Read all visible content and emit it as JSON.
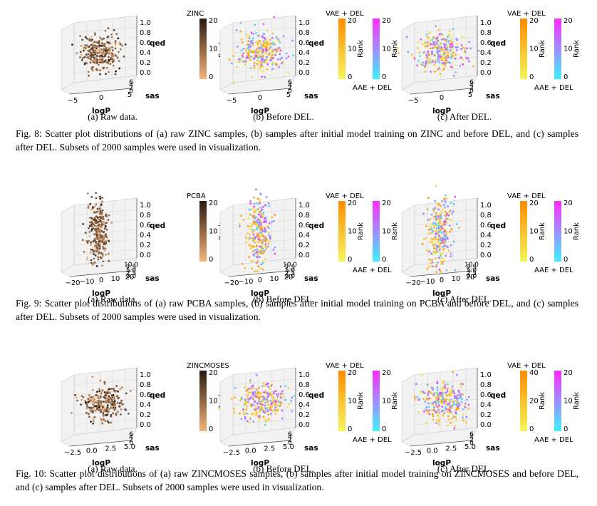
{
  "figures": [
    {
      "id": "fig8",
      "dataset": "ZINC",
      "caption": "Fig. 8: Scatter plot distributions of (a) raw ZINC samples, (b) samples after initial model training on ZINC and before DEL, and (c) samples after DEL. Subsets of 2000 samples were used in visualization.",
      "x_ticks": [
        "−5",
        "0",
        "5"
      ],
      "y_ticks": [
        "6",
        "4",
        "2",
        "0"
      ],
      "z_ticks": [
        "1.0",
        "0.8",
        "0.6",
        "0.4",
        "0.2",
        "0.0"
      ],
      "panels": [
        {
          "subcaption": "(a) Raw data.",
          "colorbars": [
            {
              "label": "ZINC",
              "ticks": [
                "20",
                "10",
                "0"
              ],
              "colormap": "copper"
            }
          ]
        },
        {
          "subcaption": "(b) Before DEL.",
          "colorbars": [
            {
              "label": "VAE + DEL",
              "ticks": [
                "20",
                "10",
                "0"
              ],
              "colormap": "wistia"
            },
            {
              "label": "AAE + DEL",
              "ticks": [
                "20",
                "10",
                "0"
              ],
              "colormap": "cool"
            }
          ]
        },
        {
          "subcaption": "(c) After DEL.",
          "colorbars": [
            {
              "label": "VAE + DEL",
              "ticks": [
                "20",
                "10",
                "0"
              ],
              "colormap": "wistia"
            },
            {
              "label": "AAE + DEL",
              "ticks": [
                "20",
                "10",
                "0"
              ],
              "colormap": "cool"
            }
          ]
        }
      ]
    },
    {
      "id": "fig9",
      "dataset": "PCBA",
      "caption": "Fig. 9: Scatter plot distributions of (a) raw PCBA samples, (b) samples after initial model training on PCBA and before DEL, and (c) samples after DEL. Subsets of 2000 samples were used in visualization.",
      "x_ticks": [
        "−20",
        "−10",
        "0",
        "10",
        "20"
      ],
      "y_ticks": [
        "10.0",
        "7.5",
        "5.0",
        "2.5",
        "0.0"
      ],
      "z_ticks": [
        "1.0",
        "0.8",
        "0.6",
        "0.4",
        "0.2",
        "0.0"
      ],
      "panels": [
        {
          "subcaption": "(a) Raw data.",
          "colorbars": [
            {
              "label": "PCBA",
              "ticks": [
                "20",
                "10",
                "0"
              ],
              "colormap": "copper"
            }
          ]
        },
        {
          "subcaption": "(b) Before DEL.",
          "colorbars": [
            {
              "label": "VAE + DEL",
              "ticks": [
                "20",
                "10",
                "0"
              ],
              "colormap": "wistia"
            },
            {
              "label": "AAE + DEL",
              "ticks": [
                "20",
                "10",
                "0"
              ],
              "colormap": "cool"
            }
          ]
        },
        {
          "subcaption": "(c) After DEL.",
          "colorbars": [
            {
              "label": "VAE + DEL",
              "ticks": [
                "20",
                "10",
                "0"
              ],
              "colormap": "wistia"
            },
            {
              "label": "AAE + DEL",
              "ticks": [
                "20",
                "10",
                "0"
              ],
              "colormap": "cool"
            }
          ]
        }
      ]
    },
    {
      "id": "fig10",
      "dataset": "ZINCMOSES",
      "caption": "Fig. 10: Scatter plot distributions of (a) raw ZINCMOSES samples, (b) samples after initial model training on ZINCMOSES and before DEL, and (c) samples after DEL. Subsets of 2000 samples were used in visualization.",
      "x_ticks": [
        "−2.5",
        "0.0",
        "2.5",
        "5.0"
      ],
      "y_ticks": [
        "6",
        "4",
        "2",
        "0"
      ],
      "z_ticks": [
        "1.0",
        "0.8",
        "0.6",
        "0.4",
        "0.2",
        "0.0"
      ],
      "panels": [
        {
          "subcaption": "(a) Raw data.",
          "colorbars": [
            {
              "label": "ZINCMOSES",
              "ticks": [
                "20",
                "10",
                "0"
              ],
              "colormap": "copper"
            }
          ]
        },
        {
          "subcaption": "(b) Before DEL.",
          "colorbars": [
            {
              "label": "VAE + DEL",
              "ticks": [
                "20",
                "10",
                "0"
              ],
              "colormap": "wistia"
            },
            {
              "label": "AAE + DEL",
              "ticks": [
                "20",
                "10",
                "0"
              ],
              "colormap": "cool"
            }
          ]
        },
        {
          "subcaption": "(c) After DEL.",
          "colorbars": [
            {
              "label": "VAE + DEL",
              "ticks": [
                "40",
                "20",
                "0"
              ],
              "colormap": "wistia"
            },
            {
              "label": "AAE + DEL",
              "ticks": [
                "20",
                "10",
                "0"
              ],
              "colormap": "cool"
            }
          ]
        }
      ]
    }
  ],
  "axis_labels": {
    "x": "logP",
    "y": "sas",
    "z": "qed",
    "colorbar": "Rank"
  },
  "colors": {
    "copper_light": "#f4b37a",
    "copper_dark": "#2b1a10",
    "wistia_light": "#f5f55a",
    "wistia_dark": "#ff8c00",
    "cool_light": "#3ff0ff",
    "cool_dark": "#ff2bff",
    "grid": "#d9d9d9",
    "pane": "#f2f2f2"
  },
  "chart_data": [
    {
      "type": "scatter",
      "dataset": "ZINC",
      "panel": "(a) Raw data.",
      "xlabel": "logP",
      "ylabel": "sas",
      "zlabel": "qed",
      "xlim": [
        -5,
        5
      ],
      "ylim": [
        0,
        6
      ],
      "zlim": [
        0.0,
        1.0
      ],
      "color_by": "Rank",
      "series": [
        {
          "name": "ZINC",
          "sample_count": 2000,
          "x_range": [
            -1,
            6
          ],
          "z_range": [
            0.2,
            0.95
          ]
        }
      ]
    },
    {
      "type": "scatter",
      "dataset": "ZINC",
      "panel": "(b) Before DEL.",
      "xlabel": "logP",
      "ylabel": "sas",
      "zlabel": "qed",
      "xlim": [
        -5,
        5
      ],
      "ylim": [
        0,
        6
      ],
      "zlim": [
        0.0,
        1.0
      ],
      "color_by": "Rank",
      "series": [
        {
          "name": "VAE + DEL",
          "x_range": [
            -3,
            6
          ],
          "z_range": [
            0.2,
            0.95
          ]
        },
        {
          "name": "AAE + DEL",
          "x_range": [
            -2,
            6
          ],
          "z_range": [
            0.3,
            0.95
          ]
        }
      ]
    },
    {
      "type": "scatter",
      "dataset": "ZINC",
      "panel": "(c) After DEL.",
      "xlabel": "logP",
      "ylabel": "sas",
      "zlabel": "qed",
      "xlim": [
        -5,
        5
      ],
      "ylim": [
        0,
        6
      ],
      "zlim": [
        0.0,
        1.0
      ],
      "color_by": "Rank",
      "series": [
        {
          "name": "VAE + DEL",
          "x_range": [
            -3,
            6
          ],
          "z_range": [
            0.2,
            0.95
          ]
        },
        {
          "name": "AAE + DEL",
          "x_range": [
            -1,
            6
          ],
          "z_range": [
            0.4,
            0.95
          ]
        }
      ]
    },
    {
      "type": "scatter",
      "dataset": "PCBA",
      "panel": "(a) Raw data.",
      "xlabel": "logP",
      "ylabel": "sas",
      "zlabel": "qed",
      "xlim": [
        -20,
        20
      ],
      "ylim": [
        0.0,
        10.0
      ],
      "zlim": [
        0.0,
        1.0
      ],
      "color_by": "Rank",
      "series": [
        {
          "name": "PCBA",
          "sample_count": 2000,
          "x_range": [
            -2,
            6
          ],
          "z_range": [
            0.1,
            0.95
          ]
        }
      ]
    },
    {
      "type": "scatter",
      "dataset": "PCBA",
      "panel": "(b) Before DEL.",
      "xlabel": "logP",
      "ylabel": "sas",
      "zlabel": "qed",
      "xlim": [
        -20,
        20
      ],
      "ylim": [
        0.0,
        10.0
      ],
      "zlim": [
        0.0,
        1.0
      ],
      "color_by": "Rank",
      "series": [
        {
          "name": "VAE + DEL",
          "x_range": [
            -2,
            6
          ],
          "z_range": [
            0.1,
            0.9
          ]
        },
        {
          "name": "AAE + DEL",
          "x_range": [
            -2,
            5
          ],
          "z_range": [
            0.2,
            0.95
          ]
        }
      ]
    },
    {
      "type": "scatter",
      "dataset": "PCBA",
      "panel": "(c) After DEL.",
      "xlabel": "logP",
      "ylabel": "sas",
      "zlabel": "qed",
      "xlim": [
        -20,
        20
      ],
      "ylim": [
        0.0,
        10.0
      ],
      "zlim": [
        0.0,
        1.0
      ],
      "color_by": "Rank",
      "series": [
        {
          "name": "VAE + DEL",
          "x_range": [
            -2,
            6
          ],
          "z_range": [
            0.1,
            0.9
          ]
        },
        {
          "name": "AAE + DEL",
          "x_range": [
            -1,
            6
          ],
          "z_range": [
            0.2,
            0.95
          ]
        }
      ]
    },
    {
      "type": "scatter",
      "dataset": "ZINCMOSES",
      "panel": "(a) Raw data.",
      "xlabel": "logP",
      "ylabel": "sas",
      "zlabel": "qed",
      "xlim": [
        -2.5,
        5.0
      ],
      "ylim": [
        0,
        6
      ],
      "zlim": [
        0.0,
        1.0
      ],
      "color_by": "Rank",
      "series": [
        {
          "name": "ZINCMOSES",
          "sample_count": 2000,
          "x_range": [
            -2,
            5
          ],
          "z_range": [
            0.3,
            0.95
          ]
        }
      ]
    },
    {
      "type": "scatter",
      "dataset": "ZINCMOSES",
      "panel": "(b) Before DEL.",
      "xlabel": "logP",
      "ylabel": "sas",
      "zlabel": "qed",
      "xlim": [
        -2.5,
        5.0
      ],
      "ylim": [
        0,
        6
      ],
      "zlim": [
        0.0,
        1.0
      ],
      "color_by": "Rank",
      "series": [
        {
          "name": "VAE + DEL",
          "x_range": [
            -2,
            5
          ],
          "z_range": [
            0.2,
            0.95
          ]
        },
        {
          "name": "AAE + DEL",
          "x_range": [
            -1,
            5
          ],
          "z_range": [
            0.3,
            0.95
          ]
        }
      ]
    },
    {
      "type": "scatter",
      "dataset": "ZINCMOSES",
      "panel": "(c) After DEL.",
      "xlabel": "logP",
      "ylabel": "sas",
      "zlabel": "qed",
      "xlim": [
        -2.5,
        5.0
      ],
      "ylim": [
        0,
        6
      ],
      "zlim": [
        0.0,
        1.0
      ],
      "color_by": "Rank",
      "series": [
        {
          "name": "VAE + DEL",
          "x_range": [
            -2,
            5
          ],
          "z_range": [
            0.2,
            0.95
          ]
        },
        {
          "name": "AAE + DEL",
          "x_range": [
            -1,
            5
          ],
          "z_range": [
            0.4,
            0.95
          ]
        }
      ]
    }
  ]
}
